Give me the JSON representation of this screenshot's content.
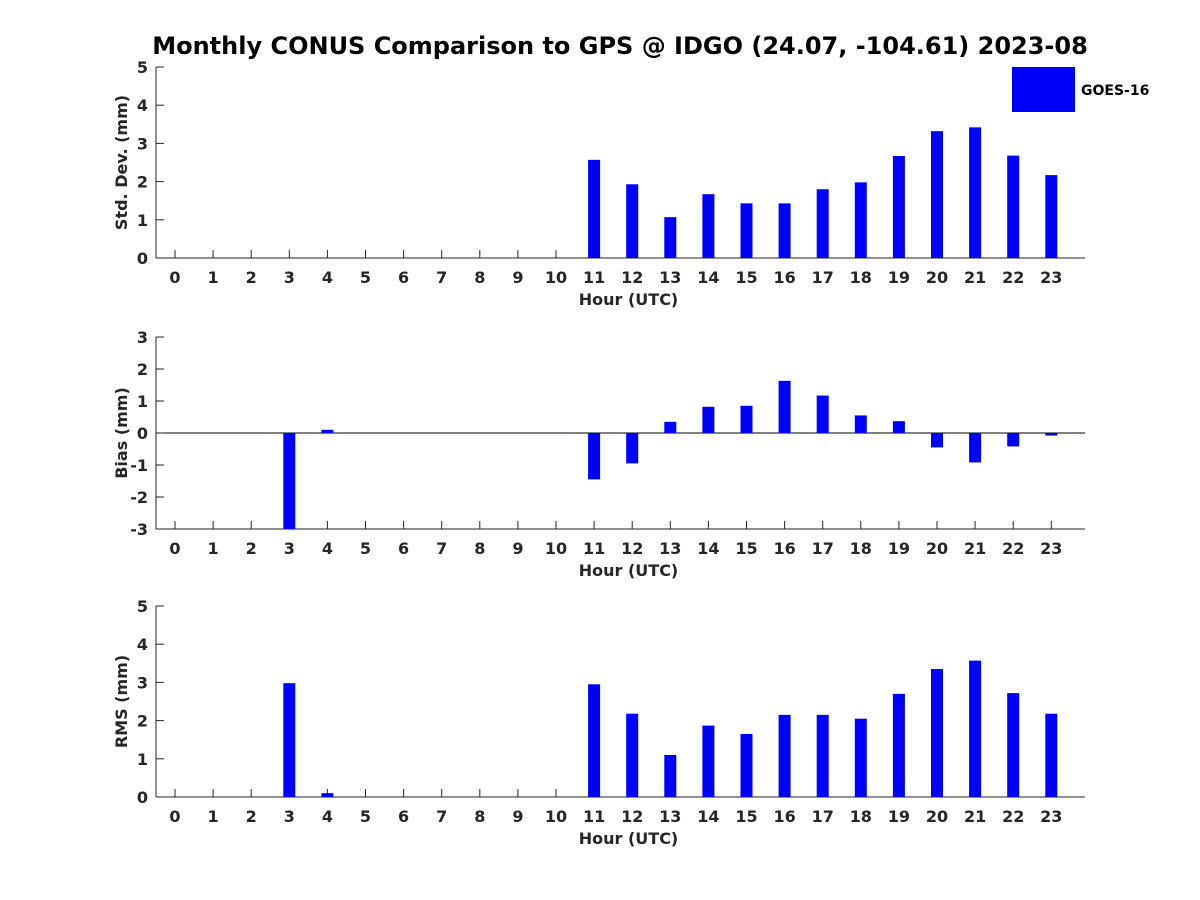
{
  "chart_data": {
    "type": "bar",
    "title": "Monthly CONUS Comparison to GPS @ IDGO (24.07, -104.61) 2023-08",
    "legend": {
      "position": "top-right",
      "entries": [
        {
          "name": "GOES-16",
          "color": "#0000ff"
        }
      ]
    },
    "panels": [
      {
        "id": "stddev",
        "ylabel": "Std. Dev. (mm)",
        "xlabel": "Hour (UTC)",
        "ylim": [
          0,
          5
        ],
        "yticks": [
          0,
          1,
          2,
          3,
          4,
          5
        ],
        "categories": [
          "0",
          "1",
          "2",
          "3",
          "4",
          "5",
          "6",
          "7",
          "8",
          "9",
          "10",
          "11",
          "12",
          "13",
          "14",
          "15",
          "16",
          "17",
          "18",
          "19",
          "20",
          "21",
          "22",
          "23"
        ],
        "series": [
          {
            "name": "GOES-16",
            "values": [
              null,
              null,
              null,
              null,
              null,
              null,
              null,
              null,
              null,
              null,
              null,
              2.57,
              1.93,
              1.07,
              1.67,
              1.43,
              1.43,
              1.8,
              1.98,
              2.67,
              3.32,
              3.42,
              2.68,
              2.17
            ]
          }
        ]
      },
      {
        "id": "bias",
        "ylabel": "Bias (mm)",
        "xlabel": "Hour (UTC)",
        "ylim": [
          -3,
          3
        ],
        "yticks": [
          -3,
          -2,
          -1,
          0,
          1,
          2,
          3
        ],
        "zero_line": true,
        "categories": [
          "0",
          "1",
          "2",
          "3",
          "4",
          "5",
          "6",
          "7",
          "8",
          "9",
          "10",
          "11",
          "12",
          "13",
          "14",
          "15",
          "16",
          "17",
          "18",
          "19",
          "20",
          "21",
          "22",
          "23"
        ],
        "series": [
          {
            "name": "GOES-16",
            "values": [
              null,
              null,
              null,
              -3.0,
              0.1,
              null,
              null,
              null,
              null,
              null,
              null,
              -1.45,
              -0.95,
              0.35,
              0.82,
              0.85,
              1.63,
              1.17,
              0.55,
              0.37,
              -0.45,
              -0.92,
              -0.42,
              -0.08
            ]
          }
        ]
      },
      {
        "id": "rms",
        "ylabel": "RMS (mm)",
        "xlabel": "Hour (UTC)",
        "ylim": [
          0,
          5
        ],
        "yticks": [
          0,
          1,
          2,
          3,
          4,
          5
        ],
        "categories": [
          "0",
          "1",
          "2",
          "3",
          "4",
          "5",
          "6",
          "7",
          "8",
          "9",
          "10",
          "11",
          "12",
          "13",
          "14",
          "15",
          "16",
          "17",
          "18",
          "19",
          "20",
          "21",
          "22",
          "23"
        ],
        "series": [
          {
            "name": "GOES-16",
            "values": [
              null,
              null,
              null,
              2.98,
              0.1,
              null,
              null,
              null,
              null,
              null,
              null,
              2.95,
              2.18,
              1.1,
              1.87,
              1.65,
              2.15,
              2.15,
              2.05,
              2.7,
              3.35,
              3.57,
              2.72,
              2.18
            ]
          }
        ]
      }
    ]
  }
}
